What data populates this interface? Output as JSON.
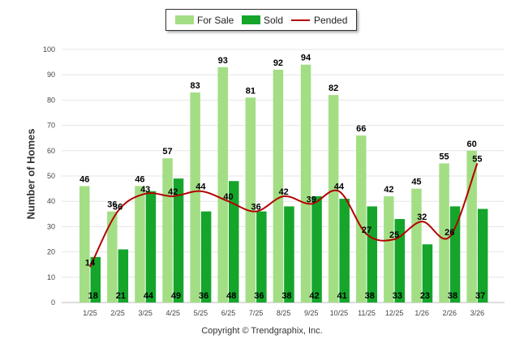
{
  "chart_data": {
    "type": "bar",
    "categories": [
      "1/25",
      "2/25",
      "3/25",
      "4/25",
      "5/25",
      "6/25",
      "7/25",
      "8/25",
      "9/25",
      "10/25",
      "11/25",
      "12/25",
      "1/26",
      "2/26",
      "3/26"
    ],
    "series": [
      {
        "name": "For Sale",
        "type": "bar",
        "color": "#a3de85",
        "values": [
          46,
          36,
          46,
          57,
          83,
          93,
          81,
          92,
          94,
          82,
          66,
          42,
          45,
          55,
          60
        ]
      },
      {
        "name": "Sold",
        "type": "bar",
        "color": "#15a52b",
        "values": [
          18,
          21,
          44,
          49,
          36,
          48,
          36,
          38,
          42,
          41,
          38,
          33,
          23,
          38,
          37
        ]
      },
      {
        "name": "Pended",
        "type": "line",
        "color": "#b40000",
        "values": [
          14,
          36,
          43,
          42,
          44,
          40,
          36,
          42,
          39,
          44,
          27,
          25,
          32,
          26,
          55
        ]
      }
    ],
    "ylabel": "Number of Homes",
    "ylim": [
      0,
      100
    ],
    "yticks": [
      0,
      10,
      20,
      30,
      40,
      50,
      60,
      70,
      80,
      90,
      100
    ],
    "grid": true,
    "legend_position": "top-center"
  },
  "legend": {
    "for_sale": "For Sale",
    "sold": "Sold",
    "pended": "Pended"
  },
  "footer": {
    "copyright": "Copyright © Trendgraphix, Inc."
  }
}
